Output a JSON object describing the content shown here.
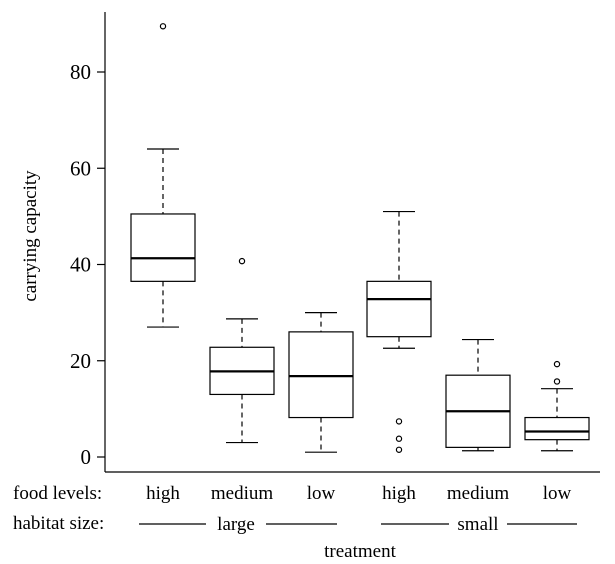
{
  "chart_data": {
    "type": "box",
    "ylabel": "carrying capacity",
    "xlabel": "treatment",
    "ylim": [
      -2,
      95
    ],
    "yticks": [
      0,
      20,
      40,
      60,
      80
    ],
    "row_labels": {
      "food": "food levels:",
      "habitat": "habitat size:"
    },
    "habitat_groups": [
      "large",
      "small"
    ],
    "boxes": [
      {
        "food": "high",
        "habitat": "large",
        "whisker_low": 27,
        "q1": 36.5,
        "median": 41.3,
        "q3": 50.5,
        "whisker_high": 64,
        "outliers": [
          89.5
        ]
      },
      {
        "food": "medium",
        "habitat": "large",
        "whisker_low": 3,
        "q1": 13,
        "median": 17.8,
        "q3": 22.8,
        "whisker_high": 28.7,
        "outliers": [
          40.7
        ]
      },
      {
        "food": "low",
        "habitat": "large",
        "whisker_low": 1,
        "q1": 8.2,
        "median": 16.8,
        "q3": 26,
        "whisker_high": 30,
        "outliers": []
      },
      {
        "food": "high",
        "habitat": "small",
        "whisker_low": 22.6,
        "q1": 25,
        "median": 32.8,
        "q3": 36.5,
        "whisker_high": 51,
        "outliers": [
          7.4,
          3.8,
          1.5
        ]
      },
      {
        "food": "medium",
        "habitat": "small",
        "whisker_low": 1.3,
        "q1": 2,
        "median": 9.5,
        "q3": 17,
        "whisker_high": 24.4,
        "outliers": []
      },
      {
        "food": "low",
        "habitat": "small",
        "whisker_low": 1.3,
        "q1": 3.6,
        "median": 5.3,
        "q3": 8.2,
        "whisker_high": 14.2,
        "outliers": [
          15.7,
          19.3
        ]
      }
    ]
  }
}
